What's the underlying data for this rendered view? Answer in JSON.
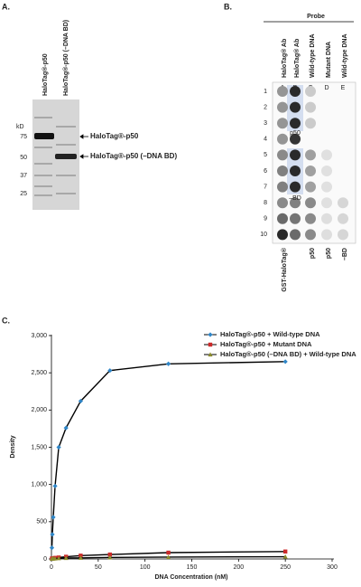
{
  "panel_a": {
    "label": "A.",
    "lanes": [
      "HaloTag®-p50",
      "HaloTag®-p50 (–DNA BD)"
    ],
    "unit": "kD",
    "markers": [
      75,
      50,
      37,
      25
    ],
    "arrows": [
      "HaloTag®-p50",
      "HaloTag®-p50 (–DNA BD)"
    ]
  },
  "panel_b": {
    "label": "B.",
    "probe": "Probe",
    "columns": [
      "HaloTag® Ab",
      "HaloTag® Ab",
      "Wild-type DNA",
      "Mutant DNA",
      "Wild-type DNA"
    ],
    "letters": [
      "A",
      "B",
      "C",
      "D",
      "E"
    ],
    "rows": [
      "1",
      "2",
      "3",
      "4",
      "5",
      "6",
      "7",
      "8",
      "9",
      "10"
    ],
    "insets": [
      "p50",
      "–BD"
    ],
    "bottom": [
      "GST-HaloTag®",
      "p50",
      "p50",
      "–BD"
    ]
  },
  "panel_c_label": "C.",
  "chart_data": {
    "type": "line",
    "x_label": "DNA Concentration (nM)",
    "y_label": "Density",
    "line_color": "#000000",
    "xlim": [
      0,
      300
    ],
    "ylim": [
      0,
      3000
    ],
    "xticks": [
      0,
      50,
      100,
      150,
      200,
      250,
      300
    ],
    "yticks": [
      0,
      {
        "value": 500,
        "label": "500"
      },
      {
        "value": 1000,
        "label": "1,000"
      },
      {
        "value": 1500,
        "label": "1,500"
      },
      {
        "value": 2000,
        "label": "2,000"
      },
      {
        "value": 2500,
        "label": "2,500"
      },
      {
        "value": 3000,
        "label": "3,000"
      }
    ],
    "x": [
      0.49,
      0.98,
      1.95,
      3.9,
      7.8,
      15.6,
      31.25,
      62.5,
      125,
      250
    ],
    "series": [
      {
        "name": "HaloTag®-p50 + Wild-type DNA",
        "color": "#2f86c8",
        "marker": "diamond",
        "values": [
          150,
          330,
          560,
          980,
          1500,
          1760,
          2120,
          2530,
          2620,
          2650
        ]
      },
      {
        "name": "HaloTag®-p50 + Mutant DNA",
        "color": "#cc2a2a",
        "marker": "square",
        "values": [
          5,
          8,
          10,
          15,
          20,
          30,
          45,
          60,
          85,
          100
        ]
      },
      {
        "name": "HaloTag®-p50 (–DNA BD) + Wild-type DNA",
        "color": "#8c8c2c",
        "marker": "triangle",
        "values": [
          2,
          3,
          4,
          5,
          8,
          12,
          15,
          20,
          25,
          30
        ]
      }
    ]
  }
}
